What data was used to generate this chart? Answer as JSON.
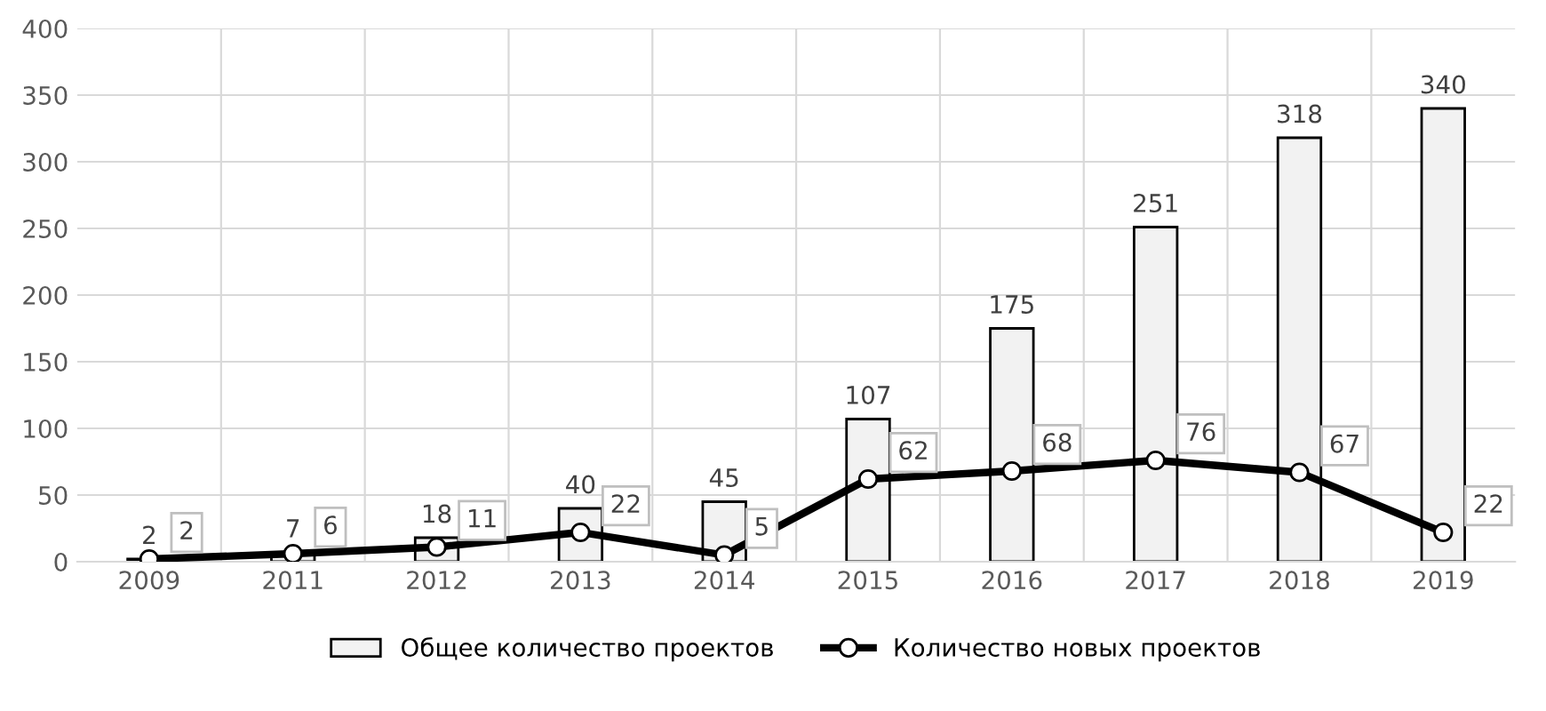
{
  "chart_data": {
    "type": "bar",
    "categories": [
      "2009",
      "2011",
      "2012",
      "2013",
      "2014",
      "2015",
      "2016",
      "2017",
      "2018",
      "2019"
    ],
    "series": [
      {
        "name": "Общее количество проектов",
        "color": "#f2f2f2",
        "values": [
          2,
          7,
          18,
          40,
          45,
          107,
          175,
          251,
          318,
          340
        ]
      },
      {
        "name": "Количество новых проектов",
        "type": "line",
        "color": "#000000",
        "marker": "circle",
        "values": [
          2,
          6,
          11,
          22,
          5,
          62,
          68,
          76,
          67,
          22
        ]
      }
    ],
    "ylim": [
      0,
      400
    ],
    "yticks": [
      0,
      50,
      100,
      150,
      200,
      250,
      300,
      350,
      400
    ],
    "grid": true,
    "legend": "bottom",
    "data_labels": true
  }
}
